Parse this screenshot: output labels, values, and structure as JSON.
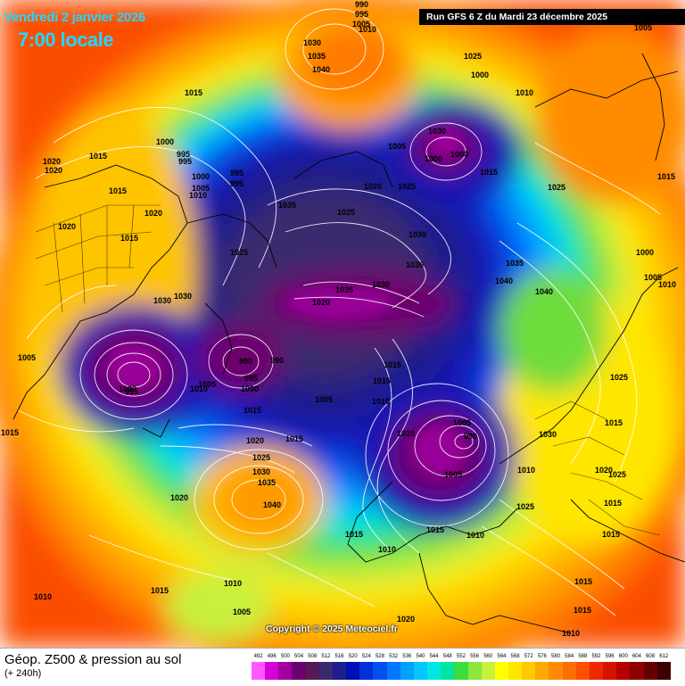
{
  "header": {
    "date": "Vendredi 2 janvier 2026",
    "time": "7:00 locale",
    "run": "Run GFS 6 Z du Mardi 23 décembre 2025"
  },
  "copyright": "Copyright © 2025 Meteociel.fr",
  "footer": {
    "title": "Géop. Z500 & pression au sol",
    "subtitle": "(+ 240h)"
  },
  "scale": {
    "values": [
      "492",
      "496",
      "500",
      "504",
      "508",
      "512",
      "516",
      "520",
      "524",
      "528",
      "532",
      "536",
      "540",
      "544",
      "548",
      "552",
      "556",
      "560",
      "564",
      "568",
      "572",
      "576",
      "580",
      "584",
      "588",
      "592",
      "596",
      "600",
      "604",
      "608",
      "612"
    ],
    "colors": [
      "#ff5aff",
      "#d800d8",
      "#a000a0",
      "#6e006e",
      "#551a55",
      "#3a2a6e",
      "#1e1e8c",
      "#0010b4",
      "#0030d8",
      "#0050f0",
      "#0078ff",
      "#00a0ff",
      "#00c8ff",
      "#00e6e6",
      "#00e6a0",
      "#3cdc3c",
      "#8ce63c",
      "#c8f03c",
      "#ffff00",
      "#ffe600",
      "#ffc800",
      "#ffaa00",
      "#ff8c00",
      "#ff6e00",
      "#ff5000",
      "#f02800",
      "#d21400",
      "#b40000",
      "#8c0000",
      "#640000",
      "#3c0000"
    ]
  },
  "pressure_labels": [
    "990",
    "995",
    "1005",
    "1010",
    "1030",
    "1035",
    "1040",
    "1015",
    "1000",
    "995",
    "995",
    "1000",
    "995",
    "995",
    "1010",
    "1005",
    "1020",
    "1015",
    "1015",
    "1020",
    "1020",
    "1015",
    "1020",
    "1025",
    "1035",
    "1025",
    "1030",
    "1020",
    "1030",
    "1035",
    "1030",
    "1025",
    "1005",
    "1000",
    "1000",
    "1015",
    "1025",
    "1020",
    "1025",
    "1030",
    "1030",
    "1035",
    "1040",
    "1040",
    "1010",
    "1000",
    "1005",
    "1025",
    "1015",
    "990",
    "990",
    "995",
    "1000",
    "1005",
    "1015",
    "1015",
    "1000",
    "1010",
    "995",
    "990",
    "1010",
    "1005",
    "1030",
    "1015",
    "1020",
    "1025",
    "1030",
    "1035",
    "1040",
    "1020",
    "1010",
    "1030",
    "1025",
    "1020",
    "1025",
    "1015",
    "1015",
    "1010",
    "1015",
    "1010",
    "1010",
    "1015",
    "1015",
    "1005",
    "1015",
    "1015",
    "1010",
    "1015",
    "1005",
    "1020",
    "1005",
    "1010",
    "1005",
    "1010",
    "1015",
    "1000",
    "1005",
    "1010",
    "1015"
  ],
  "colors": {
    "banner_text": "#22d8ff"
  }
}
